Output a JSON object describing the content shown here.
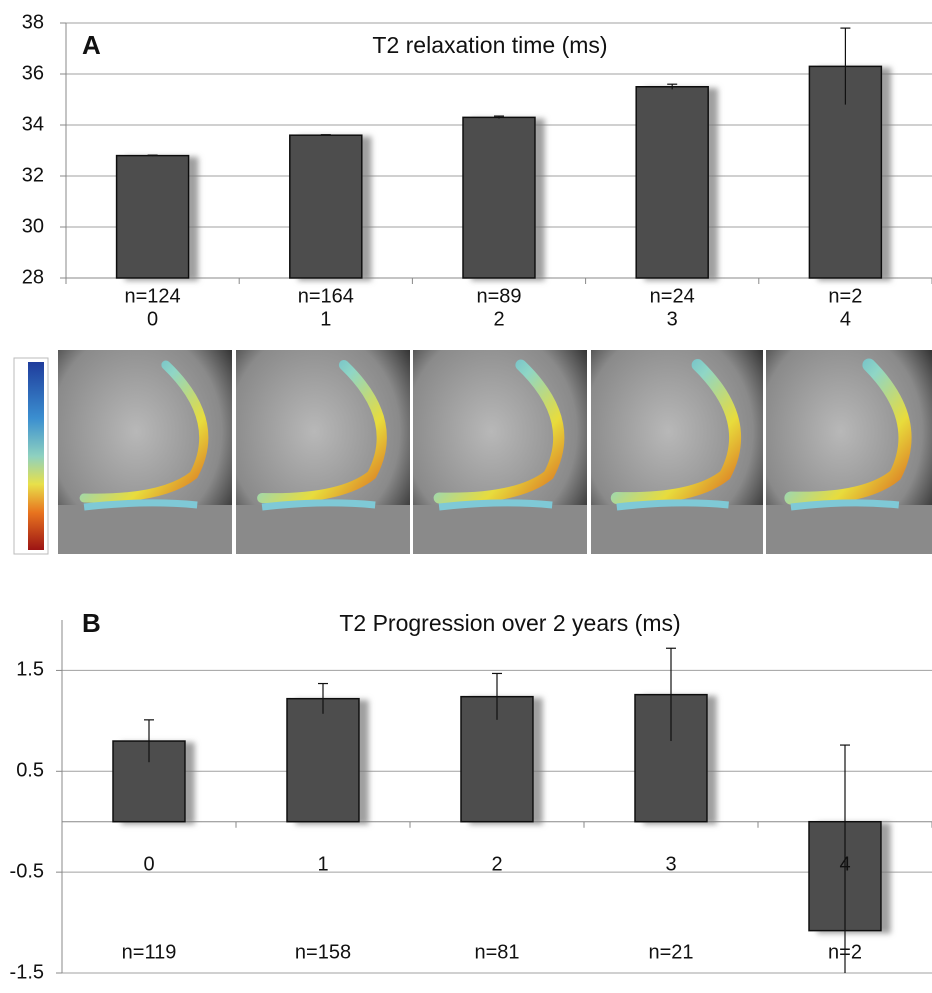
{
  "chart_data": [
    {
      "type": "bar",
      "panel": "A",
      "title": "T2 relaxation time (ms)",
      "categories": [
        "0",
        "1",
        "2",
        "3",
        "4"
      ],
      "sample_sizes": [
        "n=124",
        "n=164",
        "n=89",
        "n=24",
        "n=2"
      ],
      "values": [
        32.8,
        33.6,
        34.3,
        35.5,
        36.3
      ],
      "errors": [
        0.02,
        0.02,
        0.05,
        0.1,
        1.5
      ],
      "color": "#4d4d4d",
      "ylim": [
        28,
        38
      ],
      "yticks": [
        28,
        30,
        32,
        34,
        36,
        38
      ],
      "grid": true
    },
    {
      "type": "bar",
      "panel": "B",
      "title": "T2 Progression over 2 years (ms)",
      "categories": [
        "0",
        "1",
        "2",
        "3",
        "4"
      ],
      "sample_sizes": [
        "n=119",
        "n=158",
        "n=81",
        "n=21",
        "n=2"
      ],
      "values": [
        0.8,
        1.22,
        1.24,
        1.26,
        -1.08
      ],
      "errors": [
        0.21,
        0.15,
        0.23,
        0.46,
        1.84
      ],
      "color": "#4d4d4d",
      "ylim": [
        -1.5,
        2.0
      ],
      "yticks": [
        1.5,
        0.5,
        -0.5,
        -1.5
      ],
      "grid": true
    }
  ]
}
